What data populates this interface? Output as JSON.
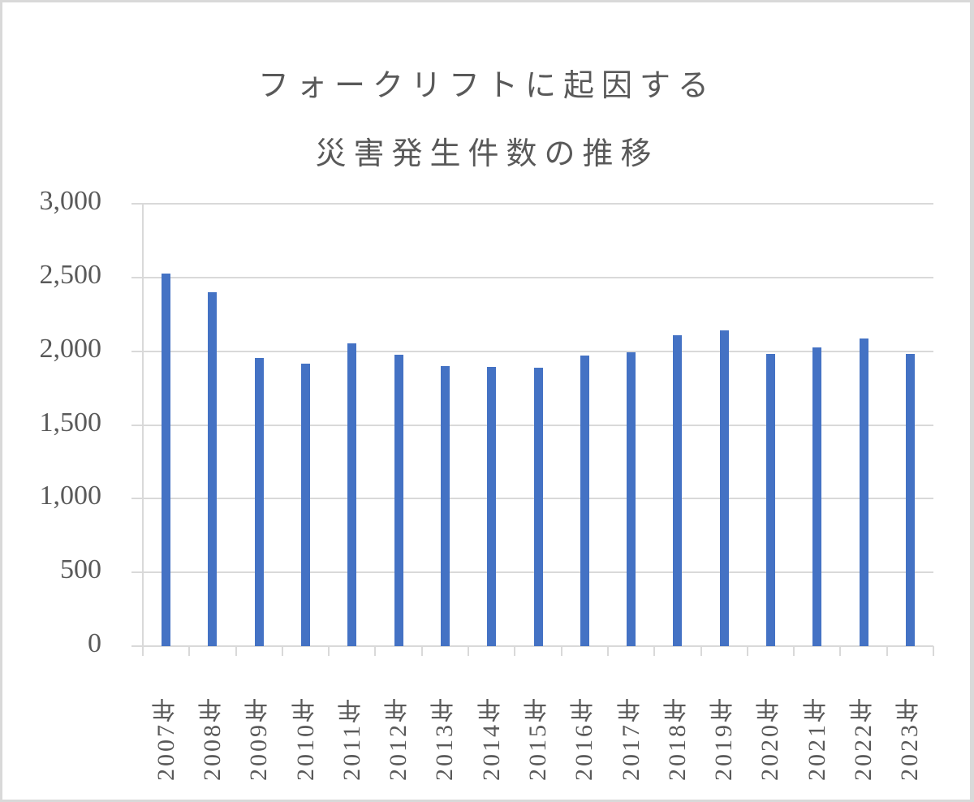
{
  "chart_data": {
    "type": "bar",
    "title": "フォークリフトに起因する災害発生件数の推移",
    "title_lines": [
      "フォークリフトに起因する",
      "災害発生件数の推移"
    ],
    "xlabel": "",
    "ylabel": "",
    "ylim": [
      0,
      3000
    ],
    "yticks": [
      0,
      500,
      1000,
      1500,
      2000,
      2500,
      3000
    ],
    "ytick_labels": [
      "0",
      "500",
      "1,000",
      "1,500",
      "2,000",
      "2,500",
      "3,000"
    ],
    "grid": true,
    "legend": null,
    "bar_color": "#4472c4",
    "categories": [
      "2007年",
      "2008年",
      "2009年",
      "2010年",
      "2011年",
      "2012年",
      "2013年",
      "2014年",
      "2015年",
      "2016年",
      "2017年",
      "2018年",
      "2019年",
      "2020年",
      "2021年",
      "2022年",
      "2023年"
    ],
    "values": [
      2525,
      2398,
      1953,
      1914,
      2052,
      1975,
      1898,
      1892,
      1887,
      1969,
      1991,
      2107,
      2140,
      1980,
      2024,
      2085,
      1980
    ]
  }
}
